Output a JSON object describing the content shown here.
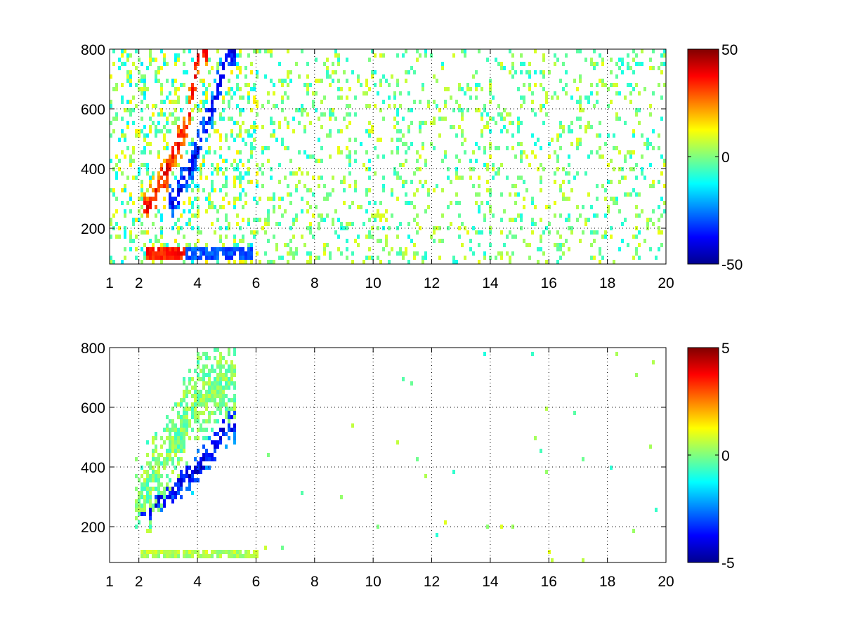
{
  "chart_data": [
    {
      "type": "heatmap",
      "title": "",
      "xlabel": "",
      "ylabel": "",
      "x_range": [
        1,
        20
      ],
      "y_range": [
        80,
        800
      ],
      "x_tick_labels": [
        "1",
        "2",
        "4",
        "6",
        "8",
        "10",
        "12",
        "14",
        "16",
        "18",
        "20"
      ],
      "x_ticks": [
        1,
        2,
        4,
        6,
        8,
        10,
        12,
        14,
        16,
        18,
        20
      ],
      "y_tick_labels": [
        "200",
        "400",
        "600",
        "800"
      ],
      "y_ticks": [
        200,
        400,
        600,
        800
      ],
      "grid": true,
      "colormap": "jet",
      "color_range": [
        -50,
        50
      ],
      "colorbar_tick_labels": [
        "50",
        "0",
        "-50"
      ],
      "colorbar_ticks": [
        50,
        0,
        -50
      ],
      "data_description": "Dense signal for x between 1.5 and 6: positive (≈+40) ridge rising from y≈280 at x≈2.3 to y≈800 at x≈4; negative (≈-40) ridge just to the right; strong band near y≈120 for x 2.2–5.8 (red then blue). Sparse scattered near-zero cells (≈-10 to +10) across x 6–20.",
      "features": [
        {
          "kind": "ridge",
          "value": 38,
          "points": [
            [
              2.3,
              280
            ],
            [
              3.0,
              420
            ],
            [
              3.6,
              560
            ],
            [
              4.0,
              800
            ]
          ]
        },
        {
          "kind": "ridge",
          "value": -40,
          "points": [
            [
              3.2,
              300
            ],
            [
              4.0,
              480
            ],
            [
              4.6,
              650
            ],
            [
              5.0,
              800
            ]
          ]
        },
        {
          "kind": "band",
          "y": 120,
          "x_from": 2.2,
          "x_to": 3.5,
          "value": 35
        },
        {
          "kind": "band",
          "y": 120,
          "x_from": 3.5,
          "x_to": 5.8,
          "value": -30
        }
      ]
    },
    {
      "type": "heatmap",
      "title": "",
      "xlabel": "",
      "ylabel": "",
      "x_range": [
        1,
        20
      ],
      "y_range": [
        80,
        800
      ],
      "x_tick_labels": [
        "1",
        "2",
        "4",
        "6",
        "8",
        "10",
        "12",
        "14",
        "16",
        "18",
        "20"
      ],
      "x_ticks": [
        1,
        2,
        4,
        6,
        8,
        10,
        12,
        14,
        16,
        18,
        20
      ],
      "y_tick_labels": [
        "200",
        "400",
        "600",
        "800"
      ],
      "y_ticks": [
        200,
        400,
        600,
        800
      ],
      "grid": true,
      "colormap": "jet",
      "color_range": [
        -5,
        5
      ],
      "colorbar_tick_labels": [
        "5",
        "0",
        "-5"
      ],
      "colorbar_ticks": [
        5,
        0,
        -5
      ],
      "data_description": "Signal concentrated for x between 1.7 and 6: cloud of mostly near-zero (green/cyan) values between y≈250 and 800, with a negative (≈-4) lower edge from y≈250 at x≈2.2 to y≈550 at x≈5; band near y≈115 for x 2–6.7 (≈0 to +1). A few isolated points near x≈8, 10.2 and 11.8.",
      "features": [
        {
          "kind": "cloud",
          "value": 0,
          "points": [
            [
              2.0,
              300
            ],
            [
              3.0,
              450
            ],
            [
              4.0,
              650
            ],
            [
              5.0,
              700
            ]
          ]
        },
        {
          "kind": "ridge",
          "value": -4,
          "points": [
            [
              2.2,
              260
            ],
            [
              3.0,
              320
            ],
            [
              4.0,
              400
            ],
            [
              5.0,
              550
            ]
          ]
        },
        {
          "kind": "band",
          "y": 115,
          "x_from": 2.0,
          "x_to": 6.7,
          "value": 0.5
        }
      ]
    }
  ]
}
